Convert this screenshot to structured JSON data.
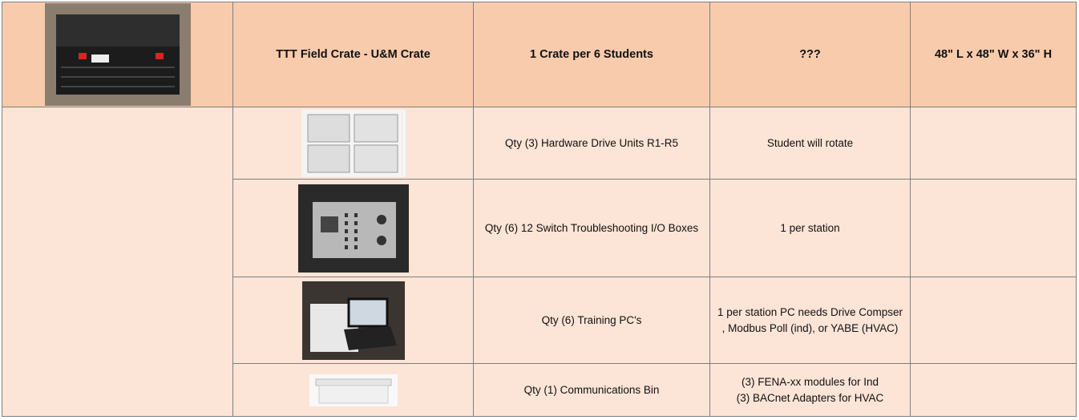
{
  "table": {
    "header": [
      "TTT Field Crate - U&M Crate",
      "1 Crate per 6 Students",
      "???",
      "48\" L x 48\" W x 36\" H"
    ],
    "rows": [
      {
        "item": "Qty (3) Hardware Drive Units R1-R5",
        "note": "Student will rotate"
      },
      {
        "item": "Qty (6) 12 Switch Troubleshooting I/O Boxes",
        "note": "1 per station"
      },
      {
        "item": "Qty (6) Training PC's",
        "note": "1 per station PC needs Drive Compser , Modbus Poll (ind), or YABE (HVAC)"
      },
      {
        "item": "Qty (1) Communications Bin",
        "note": [
          "(3) FENA-xx modules for Ind",
          "(3) BACnet Adapters for HVAC"
        ]
      }
    ]
  }
}
